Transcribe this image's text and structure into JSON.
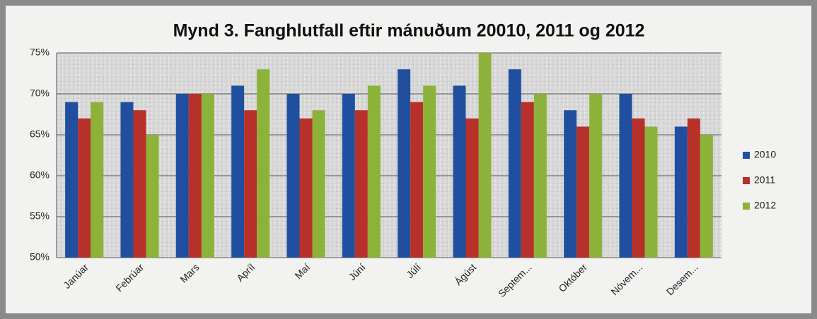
{
  "chart_data": {
    "type": "bar",
    "title": "Mynd 3.  Fanghlutfall eftir mánuðum 20010, 2011 og 2012",
    "categories": [
      "Janúar",
      "Febrúar",
      "Mars",
      "Apríl",
      "Maí",
      "Júní",
      "Júlí",
      "Ágúst",
      "Septem...",
      "Október",
      "Nóvem...",
      "Desem..."
    ],
    "series": [
      {
        "name": "2010",
        "color": "#1f4f9e",
        "values": [
          69,
          69,
          70,
          71,
          70,
          70,
          73,
          71,
          73,
          68,
          70,
          66
        ]
      },
      {
        "name": "2011",
        "color": "#b8302a",
        "values": [
          67,
          68,
          70,
          68,
          67,
          68,
          69,
          67,
          69,
          66,
          67,
          67
        ]
      },
      {
        "name": "2012",
        "color": "#8cb23a",
        "values": [
          69,
          65,
          70,
          73,
          68,
          71,
          71,
          75,
          70,
          70,
          66,
          65
        ]
      }
    ],
    "ylim": [
      50,
      75
    ],
    "yticks": [
      {
        "value": 50,
        "label": "50%"
      },
      {
        "value": 55,
        "label": "55%"
      },
      {
        "value": 60,
        "label": "60%"
      },
      {
        "value": 65,
        "label": "65%"
      },
      {
        "value": 70,
        "label": "70%"
      },
      {
        "value": 75,
        "label": "75%"
      }
    ],
    "grid": true,
    "legend": "right"
  }
}
